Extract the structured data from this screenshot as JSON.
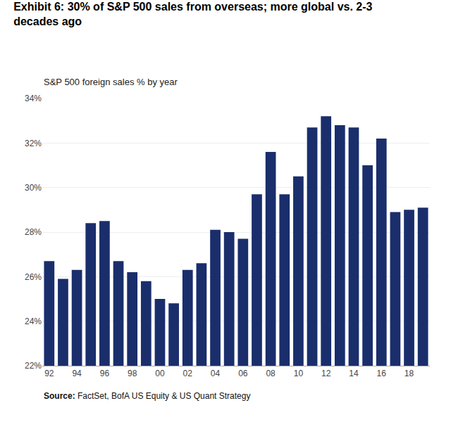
{
  "chart_data": {
    "type": "bar",
    "title": "Exhibit 6: 30% of S&P 500 sales from overseas; more global vs. 2-3\ndecades ago",
    "subtitle": "S&P 500 foreign sales % by year",
    "annotations": [
      "Source: FactSet, BofA US Equity & US Quant Strategy"
    ],
    "categories": [
      "92",
      null,
      "94",
      null,
      "96",
      null,
      "98",
      null,
      "00",
      null,
      "02",
      null,
      "04",
      null,
      "06",
      null,
      "08",
      null,
      "10",
      null,
      "12",
      null,
      "14",
      null,
      "16",
      null,
      "18",
      null
    ],
    "values": [
      26.7,
      25.9,
      26.3,
      28.4,
      28.5,
      26.7,
      26.2,
      25.8,
      25.0,
      24.8,
      26.3,
      26.6,
      28.1,
      28.0,
      27.7,
      29.7,
      31.6,
      29.7,
      30.5,
      32.7,
      33.2,
      32.8,
      32.7,
      31.0,
      32.2,
      28.9,
      29.0,
      29.1
    ],
    "color": "#1a2e6c",
    "ylim": [
      22,
      34
    ],
    "yticks": [
      {
        "value": 22,
        "label": "22%"
      },
      {
        "value": 24,
        "label": "24%"
      },
      {
        "value": 26,
        "label": "26%"
      },
      {
        "value": 28,
        "label": "28%"
      },
      {
        "value": 30,
        "label": "30%"
      },
      {
        "value": 32,
        "label": "32%"
      },
      {
        "value": 34,
        "label": "34%"
      }
    ],
    "grid": true
  }
}
